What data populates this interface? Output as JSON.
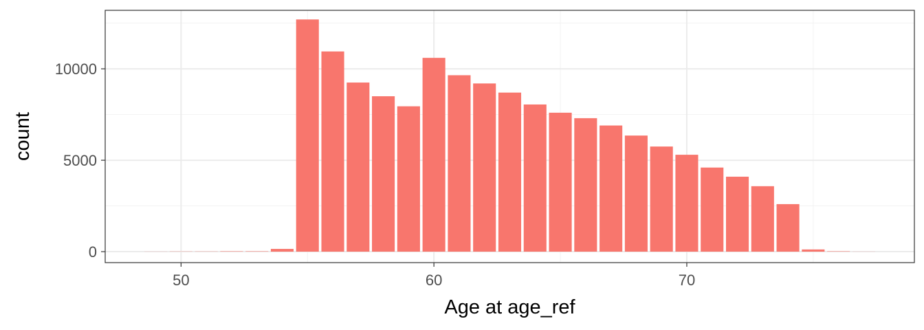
{
  "chart_data": {
    "type": "bar",
    "title": "",
    "xlabel": "Age at age_ref",
    "ylabel": "count",
    "x": [
      48,
      49,
      50,
      51,
      52,
      53,
      54,
      55,
      56,
      57,
      58,
      59,
      60,
      61,
      62,
      63,
      64,
      65,
      66,
      67,
      68,
      69,
      70,
      71,
      72,
      73,
      74,
      75,
      76,
      77,
      78
    ],
    "values": [
      0,
      5,
      10,
      10,
      20,
      20,
      150,
      12700,
      10950,
      9250,
      8500,
      7950,
      10600,
      9650,
      9200,
      8700,
      8050,
      7600,
      7300,
      6900,
      6350,
      5750,
      5300,
      4600,
      4100,
      3580,
      2600,
      120,
      20,
      5,
      0
    ],
    "xlim": [
      47.0,
      79.0
    ],
    "ylim": [
      -600,
      13200
    ],
    "x_ticks": [
      50,
      60,
      70
    ],
    "x_tick_labels": [
      "50",
      "60",
      "70"
    ],
    "y_ticks": [
      0,
      5000,
      10000
    ],
    "y_tick_labels": [
      "0",
      "5000",
      "10000"
    ],
    "grid": true,
    "legend": "none",
    "bar_color": "#F8766D",
    "panel_border_color": "#333333",
    "grid_major_color": "#EBEBEB",
    "grid_minor_color": "#F2F2F2"
  }
}
